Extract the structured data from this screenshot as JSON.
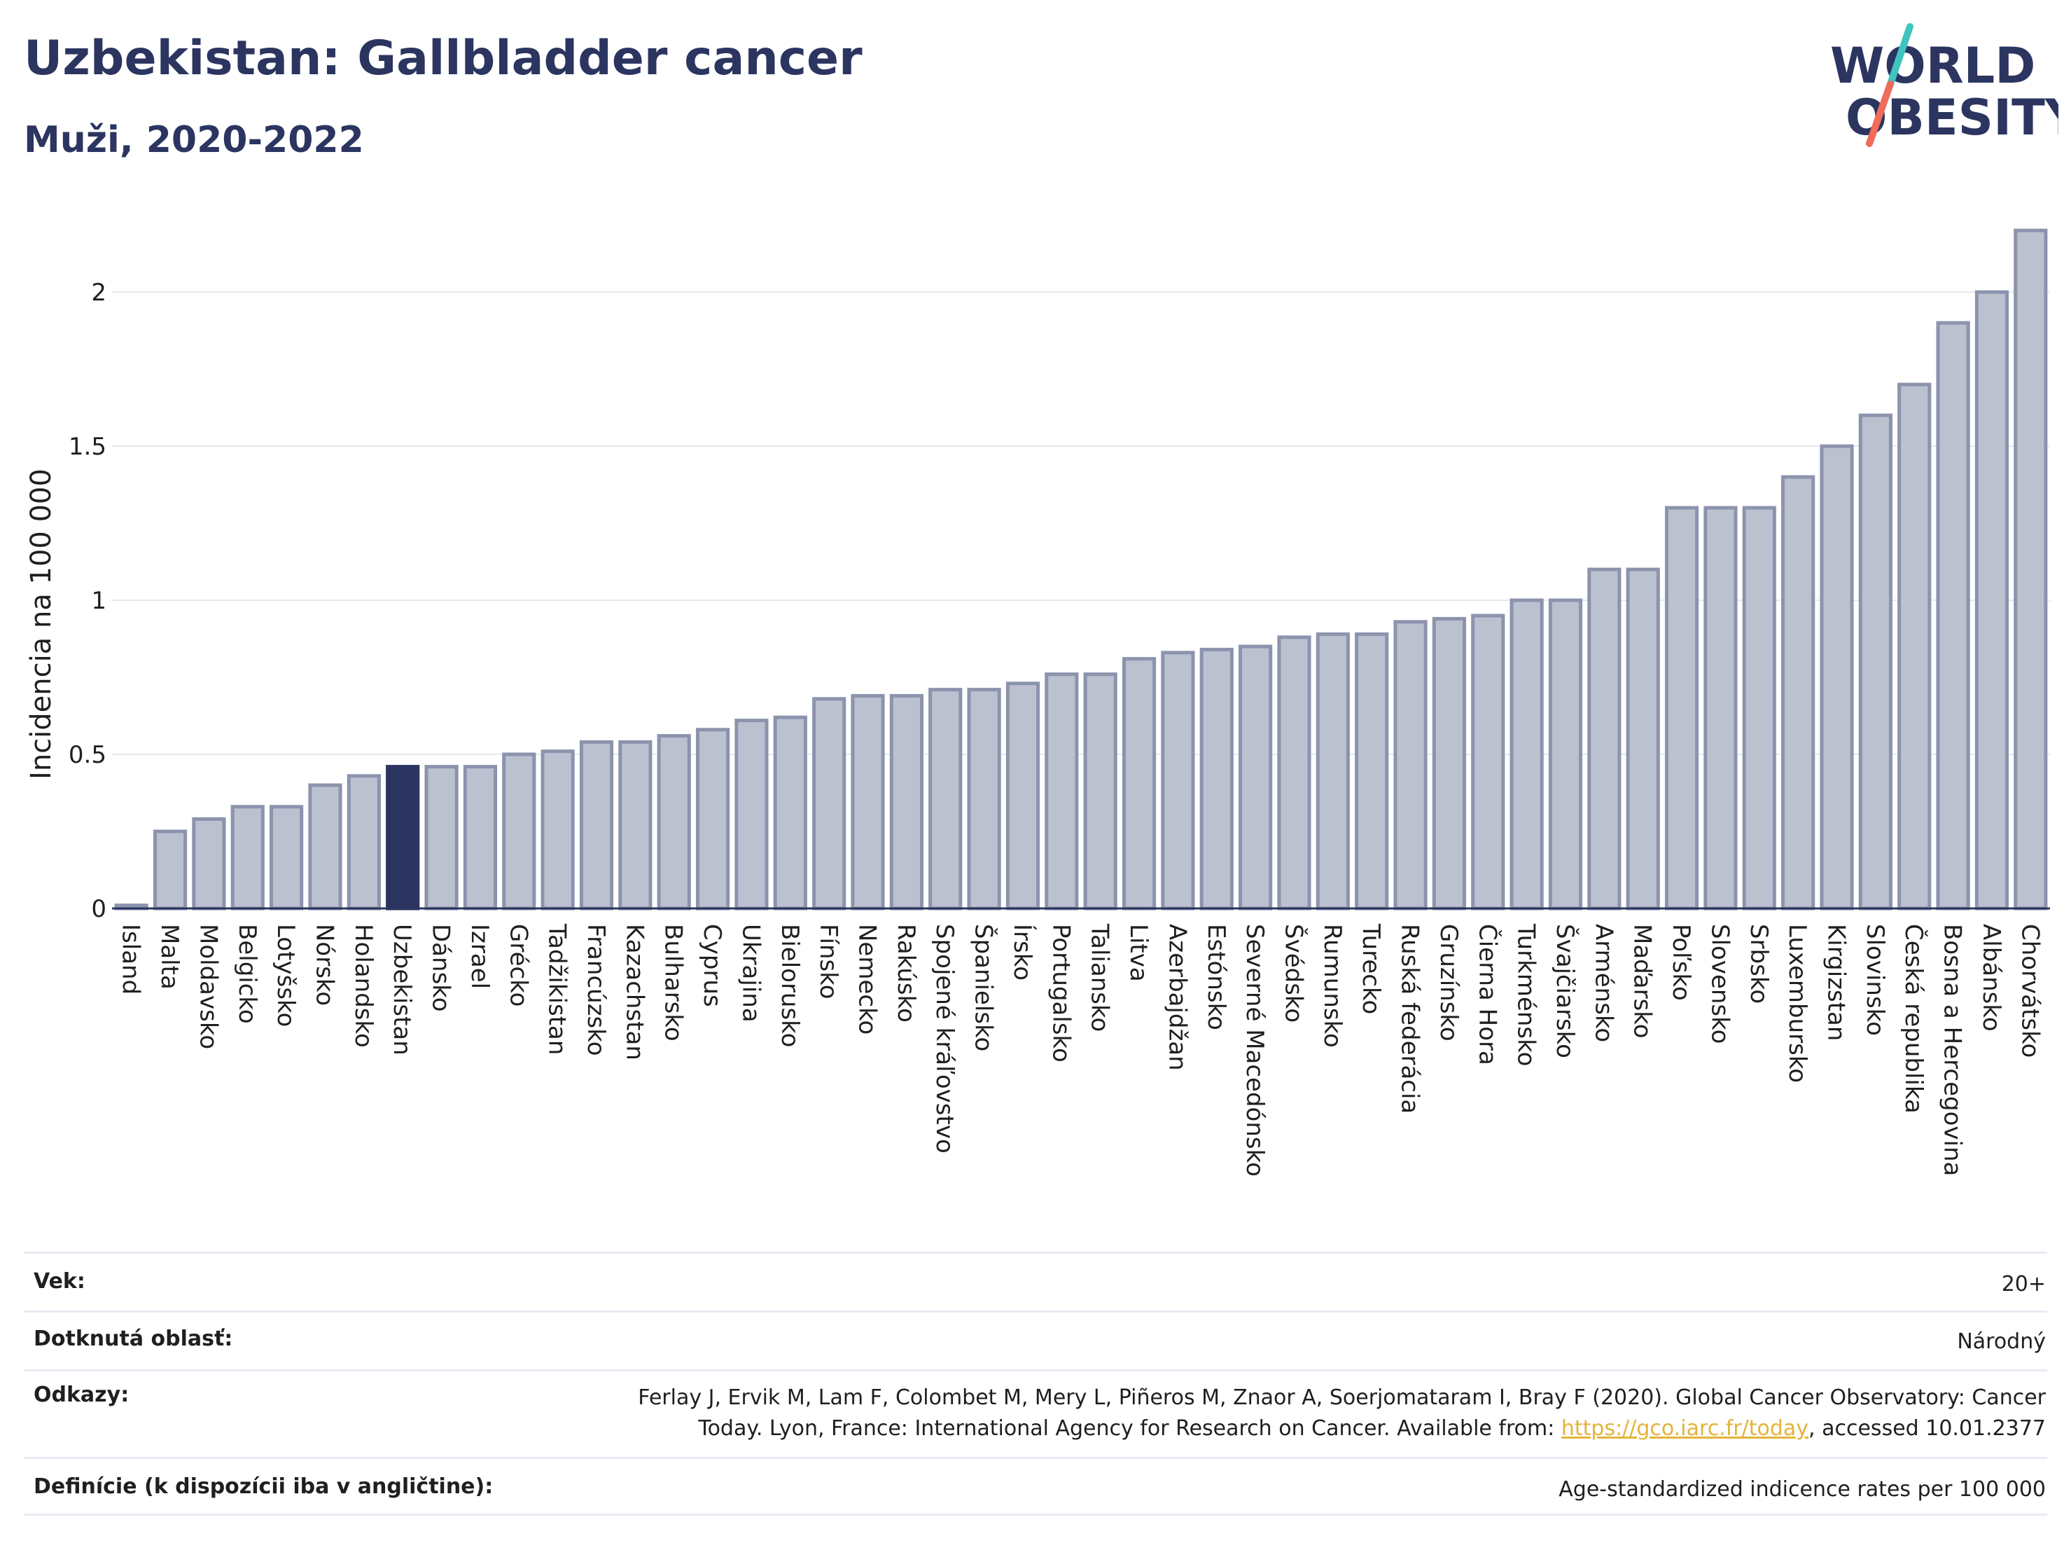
{
  "header": {
    "title": "Uzbekistan: Gallbladder cancer",
    "subtitle": "Muži, 2020-2022"
  },
  "logo": {
    "line1": "WORLD",
    "line2": "OBESITY",
    "text_color": "#2b3560",
    "slash_colors": [
      "#3fc4c0",
      "#ef6b5a"
    ]
  },
  "colors": {
    "bar": "#bcc1d0",
    "bar_stroke": "#8c93ad",
    "highlight": "#2b3560",
    "grid": "#e6e8ef",
    "axis_line": "#2b3560"
  },
  "chart_data": {
    "type": "bar",
    "ylabel": "Incidencia na 100 000",
    "ylim": [
      0,
      2.3
    ],
    "yticks": [
      0,
      0.5,
      1,
      1.5,
      2
    ],
    "ytick_labels": [
      "0",
      "0.5",
      "1",
      "1.5",
      "2"
    ],
    "grid": true,
    "highlight": "Uzbekistan",
    "categories": [
      "Island",
      "Malta",
      "Moldavsko",
      "Belgicko",
      "Lotyšsko",
      "Nórsko",
      "Holandsko",
      "Uzbekistan",
      "Dánsko",
      "Izrael",
      "Grécko",
      "Tadžikistan",
      "Francúzsko",
      "Kazachstan",
      "Bulharsko",
      "Cyprus",
      "Ukrajina",
      "Bielorusko",
      "Fínsko",
      "Nemecko",
      "Rakúsko",
      "Spojené kráľovstvo",
      "Španielsko",
      "Írsko",
      "Portugalsko",
      "Taliansko",
      "Litva",
      "Azerbajdžan",
      "Estónsko",
      "Severné Macedónsko",
      "Švédsko",
      "Rumunsko",
      "Turecko",
      "Ruská federácia",
      "Gruzínsko",
      "Čierna Hora",
      "Turkménsko",
      "Švajčiarsko",
      "Arménsko",
      "Maďarsko",
      "Poľsko",
      "Slovensko",
      "Srbsko",
      "Luxembursko",
      "Kirgizstan",
      "Slovinsko",
      "Česká republika",
      "Bosna a Hercegovina",
      "Albánsko",
      "Chorvátsko"
    ],
    "values": [
      0.01,
      0.25,
      0.29,
      0.33,
      0.33,
      0.4,
      0.43,
      0.46,
      0.46,
      0.46,
      0.5,
      0.51,
      0.54,
      0.54,
      0.56,
      0.58,
      0.61,
      0.62,
      0.68,
      0.69,
      0.69,
      0.71,
      0.71,
      0.73,
      0.76,
      0.76,
      0.81,
      0.83,
      0.84,
      0.85,
      0.88,
      0.89,
      0.89,
      0.93,
      0.94,
      0.95,
      1.0,
      1.0,
      1.1,
      1.1,
      1.3,
      1.3,
      1.3,
      1.4,
      1.5,
      1.6,
      1.7,
      1.9,
      2.0,
      2.2
    ]
  },
  "footer": {
    "age_label": "Vek:",
    "age_value": "20+",
    "area_label": "Dotknutá oblasť:",
    "area_value": "Národný",
    "refs_label": "Odkazy:",
    "refs_line1": "Ferlay J, Ervik M, Lam F, Colombet M, Mery L, Piñeros M, Znaor A, Soerjomataram I, Bray F (2020). Global Cancer Observatory: Cancer",
    "refs_line2_pre": "Today. Lyon, France: International Agency for Research on Cancer. Available from: ",
    "refs_link": "https://gco.iarc.fr/today",
    "refs_line2_post": ", accessed 10.01.2377",
    "def_label": "Definície (k dispozícii iba v angličtine):",
    "def_value": "Age-standardized indicence rates per 100 000"
  }
}
